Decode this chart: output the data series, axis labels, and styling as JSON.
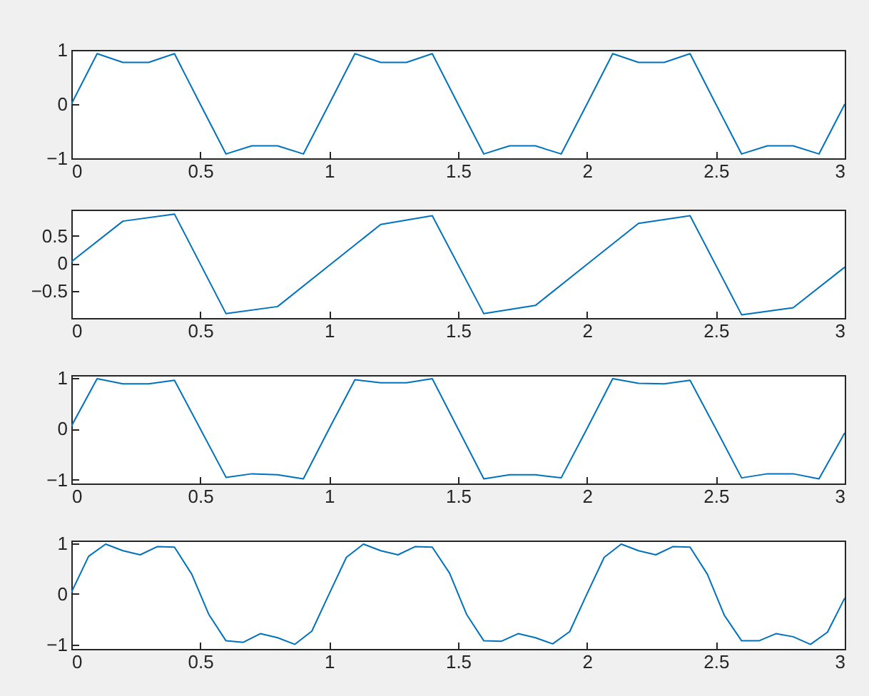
{
  "chart_data": [
    {
      "type": "line",
      "x": [
        0,
        0.1,
        0.2,
        0.3,
        0.4,
        0.5,
        0.6,
        0.7,
        0.8,
        0.9,
        1,
        1.1,
        1.2,
        1.3,
        1.4,
        1.5,
        1.6,
        1.7,
        1.8,
        1.9,
        2,
        2.1,
        2.2,
        2.3,
        2.4,
        2.5,
        2.6,
        2.7,
        2.8,
        2.9,
        3
      ],
      "values": [
        0,
        0.93,
        0.77,
        0.77,
        0.93,
        0,
        -0.92,
        -0.77,
        -0.77,
        -0.92,
        0,
        0.93,
        0.77,
        0.77,
        0.93,
        0,
        -0.92,
        -0.77,
        -0.77,
        -0.92,
        0,
        0.93,
        0.77,
        0.77,
        0.93,
        0,
        -0.92,
        -0.77,
        -0.77,
        -0.92,
        0
      ],
      "color": "#0072bd",
      "xlim": [
        0,
        3
      ],
      "xticks": [
        0,
        0.5,
        1,
        1.5,
        2,
        2.5,
        3
      ],
      "ylim": [
        -1,
        1
      ],
      "yticks": [
        -1,
        0,
        1
      ]
    },
    {
      "type": "line",
      "x": [
        0,
        0.2,
        0.4,
        0.6,
        0.8,
        1,
        1.2,
        1.4,
        1.6,
        1.8,
        2,
        2.2,
        2.4,
        2.6,
        2.8,
        3
      ],
      "values": [
        0.03,
        0.77,
        0.9,
        -0.92,
        -0.79,
        -0.04,
        0.71,
        0.87,
        -0.92,
        -0.77,
        -0.02,
        0.73,
        0.87,
        -0.94,
        -0.81,
        -0.07
      ],
      "color": "#0072bd",
      "xlim": [
        0,
        3
      ],
      "xticks": [
        0,
        0.5,
        1,
        1.5,
        2,
        2.5,
        3
      ],
      "ylim": [
        -1,
        0.98
      ],
      "yticks": [
        -0.5,
        0,
        0.5
      ]
    },
    {
      "type": "line",
      "x": [
        0,
        0.1,
        0.2,
        0.3,
        0.4,
        0.5,
        0.6,
        0.7,
        0.8,
        0.9,
        1,
        1.1,
        1.2,
        1.3,
        1.4,
        1.5,
        1.6,
        1.7,
        1.8,
        1.9,
        2,
        2.1,
        2.2,
        2.3,
        2.4,
        2.5,
        2.6,
        2.7,
        2.8,
        2.9,
        3
      ],
      "values": [
        0.05,
        0.98,
        0.88,
        0.88,
        0.95,
        0,
        -0.95,
        -0.88,
        -0.9,
        -0.98,
        0,
        0.96,
        0.9,
        0.9,
        0.98,
        0,
        -0.98,
        -0.9,
        -0.9,
        -0.96,
        0,
        0.98,
        0.89,
        0.88,
        0.95,
        0,
        -0.96,
        -0.88,
        -0.88,
        -0.98,
        -0.08
      ],
      "color": "#0072bd",
      "xlim": [
        0,
        3
      ],
      "xticks": [
        0,
        0.5,
        1,
        1.5,
        2,
        2.5,
        3
      ],
      "ylim": [
        -1.07,
        1.05
      ],
      "yticks": [
        -1,
        0,
        1
      ]
    },
    {
      "type": "line",
      "x": [
        0,
        0.067,
        0.133,
        0.2,
        0.267,
        0.333,
        0.4,
        0.467,
        0.533,
        0.6,
        0.667,
        0.733,
        0.8,
        0.867,
        0.933,
        1,
        1.067,
        1.133,
        1.2,
        1.267,
        1.333,
        1.4,
        1.467,
        1.533,
        1.6,
        1.667,
        1.733,
        1.8,
        1.867,
        1.933,
        2,
        2.067,
        2.133,
        2.2,
        2.267,
        2.333,
        2.4,
        2.467,
        2.533,
        2.6,
        2.667,
        2.733,
        2.8,
        2.867,
        2.933,
        3
      ],
      "values": [
        0.03,
        0.74,
        0.98,
        0.85,
        0.77,
        0.93,
        0.92,
        0.39,
        -0.4,
        -0.92,
        -0.95,
        -0.78,
        -0.86,
        -0.99,
        -0.73,
        0,
        0.72,
        0.98,
        0.85,
        0.77,
        0.93,
        0.92,
        0.41,
        -0.4,
        -0.92,
        -0.93,
        -0.78,
        -0.86,
        -0.98,
        -0.74,
        0,
        0.72,
        0.98,
        0.85,
        0.77,
        0.93,
        0.92,
        0.39,
        -0.42,
        -0.92,
        -0.92,
        -0.78,
        -0.84,
        -0.99,
        -0.75,
        -0.08
      ],
      "color": "#0072bd",
      "xlim": [
        0,
        3
      ],
      "xticks": [
        0,
        0.5,
        1,
        1.5,
        2,
        2.5,
        3
      ],
      "ylim": [
        -1.08,
        1.05
      ],
      "yticks": [
        -1,
        0,
        1
      ]
    }
  ]
}
